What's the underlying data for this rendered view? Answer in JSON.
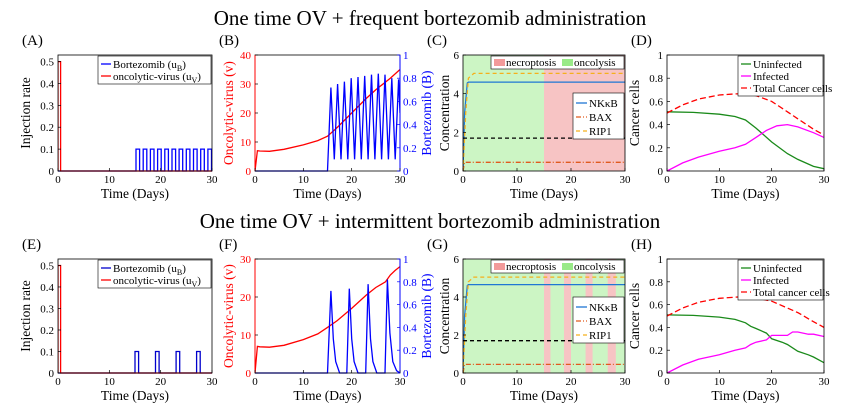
{
  "titles": {
    "top": "One time OV + frequent bortezomib administration",
    "bottom": "One time OV + intermittent bortezomib administration"
  },
  "chart_data": [
    {
      "panel": "(A)",
      "type": "line",
      "xlabel": "Time (Days)",
      "ylabel": "Injection rate",
      "ylabel_color": "#000000",
      "xlim": [
        0,
        30
      ],
      "ylim": [
        0,
        0.53
      ],
      "xticks": [
        0,
        10,
        20,
        30
      ],
      "yticks": [
        0,
        0.1,
        0.2,
        0.3,
        0.4,
        0.5
      ],
      "legend": "top-right",
      "series": [
        {
          "name": "Bortezomib (u_B)",
          "color": "#0000ff",
          "x": [
            0,
            15.2,
            15.2,
            15.9,
            15.9,
            16.6,
            16.6,
            17.3,
            17.3,
            18.0,
            18.0,
            18.7,
            18.7,
            19.4,
            19.4,
            20.1,
            20.1,
            20.8,
            20.8,
            21.5,
            21.5,
            22.2,
            22.2,
            22.9,
            22.9,
            23.6,
            23.6,
            24.3,
            24.3,
            25.0,
            25.0,
            25.7,
            25.7,
            26.4,
            26.4,
            27.1,
            27.1,
            27.8,
            27.8,
            28.5,
            28.5,
            29.2,
            29.2,
            29.9,
            29.9,
            30
          ],
          "y": [
            0,
            0,
            0.1,
            0.1,
            0,
            0,
            0.1,
            0.1,
            0,
            0,
            0.1,
            0.1,
            0,
            0,
            0.1,
            0.1,
            0,
            0,
            0.1,
            0.1,
            0,
            0,
            0.1,
            0.1,
            0,
            0,
            0.1,
            0.1,
            0,
            0,
            0.1,
            0.1,
            0,
            0,
            0.1,
            0.1,
            0,
            0,
            0.1,
            0.1,
            0,
            0,
            0.1,
            0.1,
            0,
            0
          ]
        },
        {
          "name": "oncolytic-virus (u_V)",
          "color": "#ff0000",
          "x": [
            0,
            0,
            0.5,
            0.5,
            30
          ],
          "y": [
            0,
            0.5,
            0.5,
            0,
            0
          ]
        }
      ]
    },
    {
      "panel": "(B)",
      "type": "line",
      "xlabel": "Time (Days)",
      "ylabel": "Oncolytic-virus (v)",
      "ylabel_color": "#ff0000",
      "ylabel_right": "Bortezomib (B)",
      "ylabel_right_color": "#0000ff",
      "xlim": [
        0,
        30
      ],
      "ylim": [
        0,
        40
      ],
      "ylim_right": [
        0,
        1
      ],
      "xticks": [
        0,
        10,
        20,
        30
      ],
      "yticks": [
        0,
        10,
        20,
        30,
        40
      ],
      "yticks_right": [
        0,
        0.2,
        0.4,
        0.6,
        0.8,
        1
      ],
      "series": [
        {
          "name": "Oncolytic-virus (v)",
          "color": "#ff0000",
          "axis": "left",
          "x": [
            0,
            0.5,
            1,
            3,
            6,
            10,
            13,
            15,
            17,
            20,
            23,
            25,
            28,
            30
          ],
          "y": [
            0,
            7,
            6.9,
            6.8,
            7.5,
            9,
            10.5,
            12,
            15,
            20,
            25,
            28,
            32,
            35
          ]
        },
        {
          "name": "Bortezomib (B)",
          "color": "#0000ff",
          "axis": "right",
          "x": [
            0,
            15,
            15.7,
            16.4,
            17.1,
            17.8,
            18.5,
            19.2,
            19.9,
            20.6,
            21.3,
            22,
            22.7,
            23.4,
            24.1,
            24.8,
            25.5,
            26.2,
            26.9,
            27.6,
            28.3,
            29,
            29.7,
            30
          ],
          "y": [
            0,
            0,
            0.72,
            0.1,
            0.75,
            0.1,
            0.77,
            0.1,
            0.8,
            0.1,
            0.81,
            0.1,
            0.82,
            0.1,
            0.83,
            0.1,
            0.84,
            0.1,
            0.83,
            0.1,
            0.8,
            0.1,
            0.79,
            0.5
          ]
        }
      ]
    },
    {
      "panel": "(C)",
      "type": "line",
      "xlabel": "Time (Days)",
      "ylabel": "Concentration",
      "ylabel_color": "#000000",
      "xlim": [
        0,
        30
      ],
      "ylim": [
        0,
        6
      ],
      "xticks": [
        0,
        10,
        20,
        30
      ],
      "yticks": [
        0,
        2,
        4,
        6
      ],
      "regions": [
        {
          "name": "oncolysis",
          "color": "#ccf5c4",
          "spans": [
            [
              0,
              15
            ]
          ]
        },
        {
          "name": "necroptosis",
          "color": "#f7c4c4",
          "spans": [
            [
              15,
              30
            ]
          ]
        }
      ],
      "legend": "top-right",
      "series": [
        {
          "name": "NKκB",
          "color": "#1f77d4",
          "dash": "",
          "x": [
            0,
            0.3,
            0.8,
            1,
            30
          ],
          "y": [
            0,
            3,
            4.55,
            4.6,
            4.6
          ]
        },
        {
          "name": "BAX",
          "color": "#e05a1e",
          "dash": "5,2,1,2",
          "x": [
            0,
            0.3,
            0.6,
            30
          ],
          "y": [
            0,
            0.45,
            0.45,
            0.45
          ]
        },
        {
          "name": "RIP1",
          "color": "#f5b01c",
          "dash": "4,3",
          "x": [
            0,
            0.5,
            1,
            2,
            30
          ],
          "y": [
            0,
            3,
            4.8,
            5.05,
            5.05
          ]
        },
        {
          "name": "",
          "color": "#000000",
          "dash": "4,3",
          "x": [
            0,
            30
          ],
          "y": [
            1.7,
            1.7
          ]
        }
      ]
    },
    {
      "panel": "(D)",
      "type": "line",
      "xlabel": "Time (Days)",
      "ylabel": "Cancer cells",
      "ylabel_color": "#000000",
      "xlim": [
        0,
        30
      ],
      "ylim": [
        0,
        1
      ],
      "xticks": [
        0,
        10,
        20,
        30
      ],
      "yticks": [
        0,
        0.2,
        0.4,
        0.6,
        0.8,
        1
      ],
      "legend": "top-right",
      "series": [
        {
          "name": "Uninfected",
          "color": "#1a8a1a",
          "dash": "",
          "x": [
            0,
            5,
            10,
            13,
            15,
            17,
            20,
            23,
            25,
            28,
            30
          ],
          "y": [
            0.51,
            0.505,
            0.49,
            0.47,
            0.44,
            0.37,
            0.25,
            0.15,
            0.1,
            0.04,
            0.02
          ]
        },
        {
          "name": "Infected",
          "color": "#ff00ff",
          "dash": "",
          "x": [
            0,
            3,
            6,
            10,
            13,
            15,
            17,
            19,
            21,
            23,
            25,
            28,
            30
          ],
          "y": [
            0,
            0.07,
            0.12,
            0.17,
            0.2,
            0.23,
            0.29,
            0.35,
            0.39,
            0.4,
            0.38,
            0.33,
            0.29
          ]
        },
        {
          "name": "Total Cancer cells",
          "color": "#ff0000",
          "dash": "6,3",
          "x": [
            0,
            3,
            6,
            10,
            13,
            15,
            17,
            20,
            23,
            25,
            28,
            30
          ],
          "y": [
            0.5,
            0.57,
            0.62,
            0.655,
            0.665,
            0.665,
            0.65,
            0.6,
            0.51,
            0.45,
            0.36,
            0.31
          ]
        }
      ]
    },
    {
      "panel": "(E)",
      "type": "line",
      "xlabel": "Time (Days)",
      "ylabel": "Injection rate",
      "ylabel_color": "#000000",
      "xlim": [
        0,
        30
      ],
      "ylim": [
        0,
        0.53
      ],
      "xticks": [
        0,
        10,
        20,
        30
      ],
      "yticks": [
        0,
        0.1,
        0.2,
        0.3,
        0.4,
        0.5
      ],
      "legend": "top-right",
      "series": [
        {
          "name": "Bortezomib (u_B)",
          "color": "#0000cc",
          "x": [
            0,
            15,
            15,
            15.7,
            15.7,
            19,
            19,
            19.7,
            19.7,
            23,
            23,
            23.7,
            23.7,
            27,
            27,
            27.7,
            27.7,
            30
          ],
          "y": [
            0,
            0,
            0.1,
            0.1,
            0,
            0,
            0.1,
            0.1,
            0,
            0,
            0.1,
            0.1,
            0,
            0,
            0.1,
            0.1,
            0,
            0
          ]
        },
        {
          "name": "oncolytic-virus (u_V)",
          "color": "#ff0000",
          "x": [
            0,
            0,
            0.5,
            0.5,
            30
          ],
          "y": [
            0,
            0.5,
            0.5,
            0,
            0
          ]
        }
      ]
    },
    {
      "panel": "(F)",
      "type": "line",
      "xlabel": "Time (Days)",
      "ylabel": "Oncolytic-virus (v)",
      "ylabel_color": "#ff0000",
      "ylabel_right": "Bortezomib (B)",
      "ylabel_right_color": "#0000ff",
      "xlim": [
        0,
        30
      ],
      "ylim": [
        0,
        30
      ],
      "ylim_right": [
        0,
        1
      ],
      "xticks": [
        0,
        10,
        20,
        30
      ],
      "yticks": [
        0,
        10,
        20,
        30
      ],
      "yticks_right": [
        0,
        0.2,
        0.4,
        0.6,
        0.8,
        1
      ],
      "series": [
        {
          "name": "Oncolytic-virus (v)",
          "color": "#ff0000",
          "axis": "left",
          "x": [
            0,
            0.5,
            1,
            3,
            6,
            10,
            13,
            15,
            17,
            20,
            23,
            25,
            27,
            28,
            29,
            30
          ],
          "y": [
            0,
            7,
            6.9,
            6.8,
            7.3,
            8.8,
            10.3,
            12,
            13.8,
            17,
            20.5,
            22.5,
            24,
            25.8,
            27,
            28
          ]
        },
        {
          "name": "Bortezomib (B)",
          "color": "#0000ff",
          "axis": "right",
          "x": [
            0,
            15,
            15.7,
            16.2,
            16.7,
            17.5,
            19,
            19.5,
            20,
            20.5,
            21.3,
            22.9,
            23.4,
            23.9,
            24.4,
            25.2,
            26.9,
            27.4,
            27.9,
            28.5,
            29.3,
            30
          ],
          "y": [
            0,
            0,
            0.72,
            0.3,
            0.1,
            0,
            0,
            0.74,
            0.3,
            0.1,
            0,
            0,
            0.78,
            0.3,
            0.1,
            0,
            0,
            0.82,
            0.35,
            0.1,
            0.02,
            0
          ]
        }
      ]
    },
    {
      "panel": "(G)",
      "type": "line",
      "xlabel": "Time (Days)",
      "ylabel": "Concentration",
      "ylabel_color": "#000000",
      "xlim": [
        0,
        30
      ],
      "ylim": [
        0,
        6
      ],
      "xticks": [
        0,
        10,
        20,
        30
      ],
      "yticks": [
        0,
        2,
        4,
        6
      ],
      "regions": [
        {
          "name": "oncolysis",
          "color": "#ccf5c4",
          "spans": [
            [
              0,
              30
            ]
          ]
        },
        {
          "name": "necroptosis",
          "color": "#f7c4c4",
          "spans": [
            [
              15,
              16.2
            ],
            [
              18.7,
              20
            ],
            [
              22.7,
              24
            ],
            [
              26.8,
              28.3
            ]
          ]
        }
      ],
      "legend": "top-right",
      "series": [
        {
          "name": "NKκB",
          "color": "#1f77d4",
          "dash": "",
          "x": [
            0,
            0.3,
            0.8,
            1,
            30
          ],
          "y": [
            0,
            3,
            4.6,
            4.65,
            4.65
          ]
        },
        {
          "name": "BAX",
          "color": "#e05a1e",
          "dash": "5,2,1,2",
          "x": [
            0,
            0.3,
            0.6,
            30
          ],
          "y": [
            0,
            0.45,
            0.45,
            0.45
          ]
        },
        {
          "name": "RIP1",
          "color": "#f5b01c",
          "dash": "4,3",
          "x": [
            0,
            0.5,
            1,
            2,
            30
          ],
          "y": [
            0,
            3,
            4.8,
            5.05,
            5.05
          ]
        },
        {
          "name": "",
          "color": "#000000",
          "dash": "4,3",
          "x": [
            0,
            30
          ],
          "y": [
            1.7,
            1.7
          ]
        }
      ]
    },
    {
      "panel": "(H)",
      "type": "line",
      "xlabel": "Time (Days)",
      "ylabel": "Cancer cells",
      "ylabel_color": "#000000",
      "xlim": [
        0,
        30
      ],
      "ylim": [
        0,
        1
      ],
      "xticks": [
        0,
        10,
        20,
        30
      ],
      "yticks": [
        0,
        0.2,
        0.4,
        0.6,
        0.8,
        1
      ],
      "legend": "top-right",
      "series": [
        {
          "name": "Uninfected",
          "color": "#1a8a1a",
          "dash": "",
          "x": [
            0,
            5,
            10,
            13,
            15,
            16,
            17,
            19,
            20,
            22,
            23,
            25,
            27,
            28,
            30
          ],
          "y": [
            0.51,
            0.505,
            0.49,
            0.47,
            0.44,
            0.41,
            0.39,
            0.35,
            0.3,
            0.27,
            0.25,
            0.19,
            0.16,
            0.14,
            0.09
          ]
        },
        {
          "name": "Infected",
          "color": "#ff00ff",
          "dash": "",
          "x": [
            0,
            3,
            6,
            10,
            13,
            15,
            16,
            17,
            19,
            20,
            23,
            24,
            25,
            27,
            28,
            30
          ],
          "y": [
            0,
            0.07,
            0.12,
            0.16,
            0.2,
            0.22,
            0.25,
            0.27,
            0.29,
            0.33,
            0.33,
            0.36,
            0.36,
            0.34,
            0.34,
            0.32
          ]
        },
        {
          "name": "Total cancer cells",
          "color": "#ff0000",
          "dash": "6,3",
          "x": [
            0,
            3,
            6,
            10,
            13,
            15,
            17,
            20,
            23,
            25,
            28,
            30
          ],
          "y": [
            0.5,
            0.57,
            0.62,
            0.655,
            0.665,
            0.67,
            0.66,
            0.63,
            0.57,
            0.53,
            0.45,
            0.4
          ]
        }
      ]
    }
  ]
}
